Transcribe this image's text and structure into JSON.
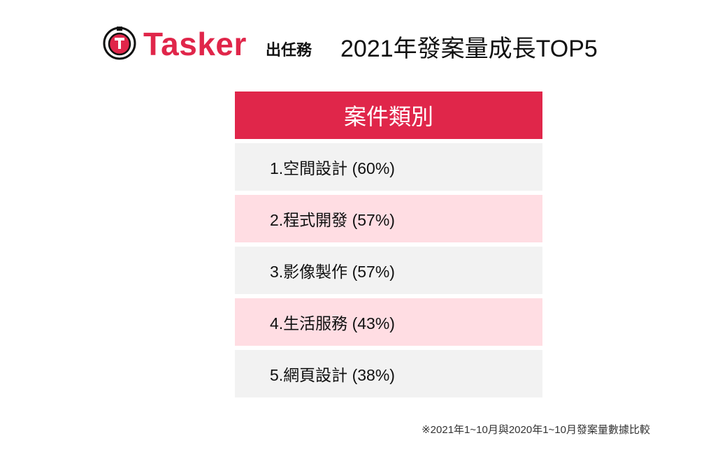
{
  "header": {
    "brand": "Tasker",
    "brand_sub": "出任務",
    "title": "2021年發案量成長TOP5"
  },
  "table": {
    "header": "案件類別",
    "rows": [
      "1.空間設計 (60%)",
      "2.程式開發 (57%)",
      "3.影像製作 (57%)",
      "4.生活服務 (43%)",
      "5.網頁設計 (38%)"
    ]
  },
  "footnote": "※2021年1~10月與2020年1~10月發案量數據比較"
}
